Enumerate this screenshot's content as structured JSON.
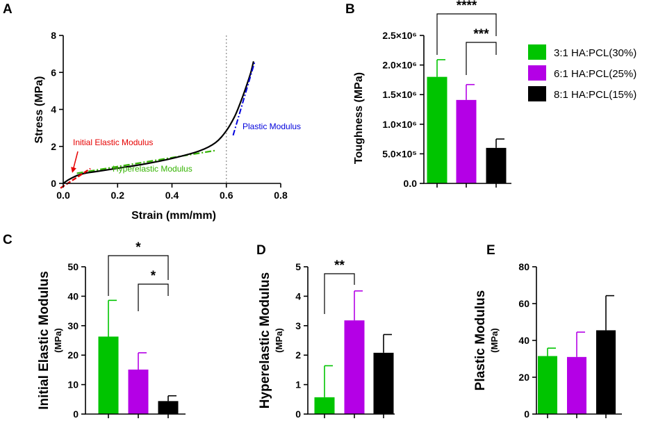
{
  "colors": {
    "green": "#00c400",
    "purple": "#b400e6",
    "black": "#000000",
    "red": "#e60000",
    "blue": "#0000dc",
    "hyper_green": "#33b300",
    "grey": "#888888"
  },
  "legend": [
    {
      "label": "3:1 HA:PCL(30%)",
      "color": "#00c400"
    },
    {
      "label": "6:1 HA:PCL(25%)",
      "color": "#b400e6"
    },
    {
      "label": "8:1 HA:PCL(15%)",
      "color": "#000000"
    }
  ],
  "chart_data": [
    {
      "panel": "A",
      "type": "line",
      "xlabel": "Strain (mm/mm)",
      "ylabel": "Stress (MPa)",
      "xlim": [
        0,
        0.8
      ],
      "ylim": [
        0,
        8
      ],
      "xticks": [
        0.0,
        0.2,
        0.4,
        0.6,
        0.8
      ],
      "xtick_labels": [
        "0.0",
        "0.2",
        "0.4",
        "0.6",
        "0.8"
      ],
      "yticks": [
        0,
        2,
        4,
        6,
        8
      ],
      "ytick_labels": [
        "0",
        "2",
        "4",
        "6",
        "8"
      ],
      "reference_x": 0.6,
      "series": [
        {
          "name": "stress-strain curve",
          "x": [
            0,
            0.02,
            0.05,
            0.08,
            0.12,
            0.2,
            0.3,
            0.4,
            0.5,
            0.56,
            0.6,
            0.63,
            0.65,
            0.67,
            0.69,
            0.7
          ],
          "y": [
            0,
            0.2,
            0.42,
            0.55,
            0.64,
            0.82,
            1.05,
            1.35,
            1.75,
            2.2,
            2.85,
            3.6,
            4.3,
            5.1,
            6.0,
            6.6
          ]
        },
        {
          "name": "initial elastic fit",
          "x": [
            -0.01,
            0.1
          ],
          "y": [
            -0.25,
            0.8
          ]
        },
        {
          "name": "hyperelastic fit",
          "x": [
            0.05,
            0.56
          ],
          "y": [
            0.55,
            1.78
          ]
        },
        {
          "name": "plastic fit",
          "x": [
            0.625,
            0.705
          ],
          "y": [
            2.6,
            6.6
          ]
        }
      ],
      "annotations": [
        {
          "text": "Initial Elastic Modulus",
          "color": "#e60000"
        },
        {
          "text": "Hyperelastic Modulus",
          "color": "#33b300"
        },
        {
          "text": "Plastic Modulus",
          "color": "#0000dc"
        }
      ]
    },
    {
      "panel": "B",
      "type": "bar",
      "ylabel": "Toughness (MPa)",
      "categories": [
        "3:1 HA:PCL(30%)",
        "6:1 HA:PCL(25%)",
        "8:1 HA:PCL(15%)"
      ],
      "values": [
        1800000,
        1410000,
        600000
      ],
      "errors": [
        290000,
        260000,
        150000
      ],
      "ylim": [
        0,
        2500000
      ],
      "yticks": [
        0,
        500000,
        1000000,
        1500000,
        2000000,
        2500000
      ],
      "ytick_labels": [
        "0.0",
        "5.0×10⁵",
        "1.0×10⁶",
        "1.5×10⁶",
        "2.0×10⁶",
        "2.5×10⁶"
      ],
      "significance": [
        {
          "from": 0,
          "to": 2,
          "label": "****"
        },
        {
          "from": 1,
          "to": 2,
          "label": "***"
        }
      ]
    },
    {
      "panel": "C",
      "type": "bar",
      "ylabel": "Initial Elastic Modulus",
      "ylabel_unit": "(MPa)",
      "categories": [
        "3:1 HA:PCL(30%)",
        "6:1 HA:PCL(25%)",
        "8:1 HA:PCL(15%)"
      ],
      "values": [
        26.3,
        15.1,
        4.4
      ],
      "errors": [
        12.3,
        5.7,
        1.8
      ],
      "ylim": [
        0,
        50
      ],
      "yticks": [
        0,
        10,
        20,
        30,
        40,
        50
      ],
      "ytick_labels": [
        "0",
        "10",
        "20",
        "30",
        "40",
        "50"
      ],
      "significance": [
        {
          "from": 0,
          "to": 2,
          "label": "*"
        },
        {
          "from": 1,
          "to": 2,
          "label": "*"
        }
      ]
    },
    {
      "panel": "D",
      "type": "bar",
      "ylabel": "Hyperelastic Modulus",
      "ylabel_unit": "(MPa)",
      "categories": [
        "3:1 HA:PCL(30%)",
        "6:1 HA:PCL(25%)",
        "8:1 HA:PCL(15%)"
      ],
      "values": [
        0.57,
        3.18,
        2.08
      ],
      "errors": [
        1.07,
        1.0,
        0.62
      ],
      "ylim": [
        0,
        5
      ],
      "yticks": [
        0,
        1,
        2,
        3,
        4,
        5
      ],
      "ytick_labels": [
        "0",
        "1",
        "2",
        "3",
        "4",
        "5"
      ],
      "significance": [
        {
          "from": 0,
          "to": 1,
          "label": "**"
        }
      ]
    },
    {
      "panel": "E",
      "type": "bar",
      "ylabel": "Plastic Modulus",
      "ylabel_unit": "(MPa)",
      "categories": [
        "3:1 HA:PCL(30%)",
        "6:1 HA:PCL(25%)",
        "8:1 HA:PCL(15%)"
      ],
      "values": [
        31.5,
        31.0,
        45.5
      ],
      "errors": [
        4.3,
        13.5,
        18.8
      ],
      "ylim": [
        0,
        80
      ],
      "yticks": [
        0,
        20,
        40,
        60,
        80
      ],
      "ytick_labels": [
        "0",
        "20",
        "40",
        "60",
        "80"
      ],
      "significance": []
    }
  ]
}
